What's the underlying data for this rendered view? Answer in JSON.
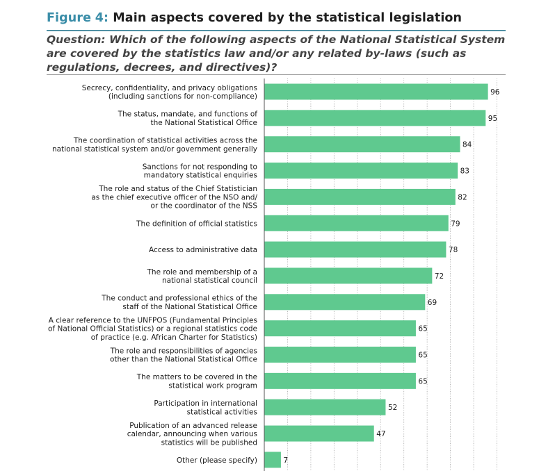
{
  "figure": {
    "label": "Figure",
    "number": "4:",
    "title": "Main aspects covered by the statistical legislation",
    "question": "Question: Which of the following aspects of the National Statistical System are covered by the statistics law and/or any related by-laws (such as regulations, decrees, and directives)?"
  },
  "chart_data": {
    "type": "bar",
    "orientation": "horizontal",
    "title": "Main aspects covered by the statistical legislation",
    "bar_color": "#5fc98f",
    "xlim": [
      0,
      100
    ],
    "grid": true,
    "categories": [
      [
        "Secrecy, confidentiality, and privacy obligations",
        "(including sanctions for non-compliance)"
      ],
      [
        "The status, mandate, and functions of",
        "the National Statistical Office"
      ],
      [
        "The coordination of statistical activities across the",
        "national statistical system and/or government generally"
      ],
      [
        "Sanctions for not responding to",
        "mandatory statistical enquiries"
      ],
      [
        "The role and status of the Chief Statistician",
        "as the chief executive officer of the NSO and/",
        "or the coordinator of the NSS"
      ],
      [
        "The definition of official statistics"
      ],
      [
        "Access to administrative data"
      ],
      [
        "The role and membership of a",
        "national statistical council"
      ],
      [
        "The conduct and professional ethics of the",
        "staff of the National Statistical Office"
      ],
      [
        "A clear reference to the UNFPOS (Fundamental Principles",
        "of National Official Statistics) or a regional statistics code",
        "of practice (e.g. African Charter for Statistics)"
      ],
      [
        "The role and responsibilities of agencies",
        "other than the National Statistical Office"
      ],
      [
        "The matters to be covered in the",
        "statistical work program"
      ],
      [
        "Participation in international",
        "statistical activities"
      ],
      [
        "Publication of an advanced release",
        "calendar, announcing when various",
        "statistics will be published"
      ],
      [
        "Other (please specify)"
      ]
    ],
    "values": [
      96,
      95,
      84,
      83,
      82,
      79,
      78,
      72,
      69,
      65,
      65,
      65,
      52,
      47,
      7
    ]
  }
}
